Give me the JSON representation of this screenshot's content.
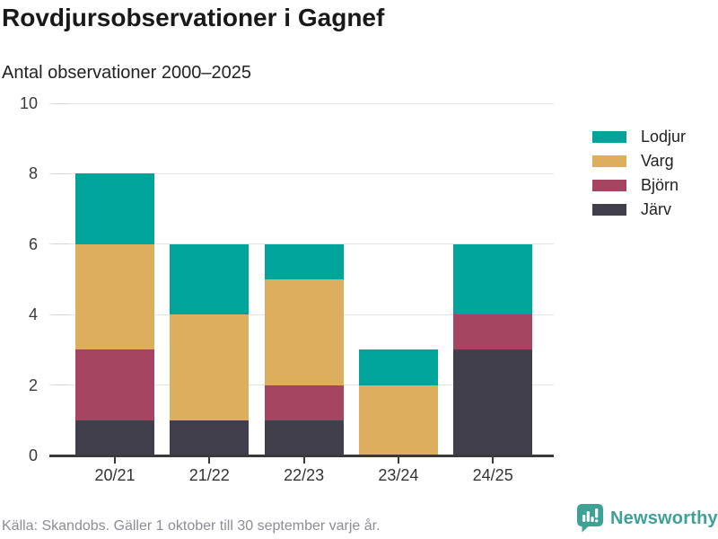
{
  "header": {
    "title": "Rovdjursobservationer i Gagnef",
    "subtitle": "Antal observationer 2000–2025"
  },
  "chart_data": {
    "type": "bar",
    "stacked": true,
    "title": "Rovdjursobservationer i Gagnef",
    "subtitle": "Antal observationer 2000–2025",
    "categories": [
      "20/21",
      "21/22",
      "22/23",
      "23/24",
      "24/25"
    ],
    "series": [
      {
        "name": "Lodjur",
        "color": "#00a49b",
        "values": [
          2,
          2,
          1,
          1,
          2
        ]
      },
      {
        "name": "Varg",
        "color": "#dcae5d",
        "values": [
          3,
          3,
          3,
          2,
          0
        ]
      },
      {
        "name": "Björn",
        "color": "#a64562",
        "values": [
          2,
          0,
          1,
          0,
          1
        ]
      },
      {
        "name": "Järv",
        "color": "#423f4d",
        "values": [
          1,
          1,
          1,
          0,
          3
        ]
      }
    ],
    "stack_order_bottom_to_top": [
      "Järv",
      "Björn",
      "Varg",
      "Lodjur"
    ],
    "totals": [
      8,
      6,
      6,
      3,
      6
    ],
    "xlabel": "",
    "ylabel": "",
    "ylim": [
      0,
      10
    ],
    "yticks": [
      0,
      2,
      4,
      6,
      8,
      10
    ],
    "grid": true,
    "legend_position": "right"
  },
  "footer": {
    "source": "Källa: Skandobs. Gäller 1 oktober till 30 september varje år.",
    "brand": "Newsworthy",
    "brand_color": "#3ea195"
  }
}
